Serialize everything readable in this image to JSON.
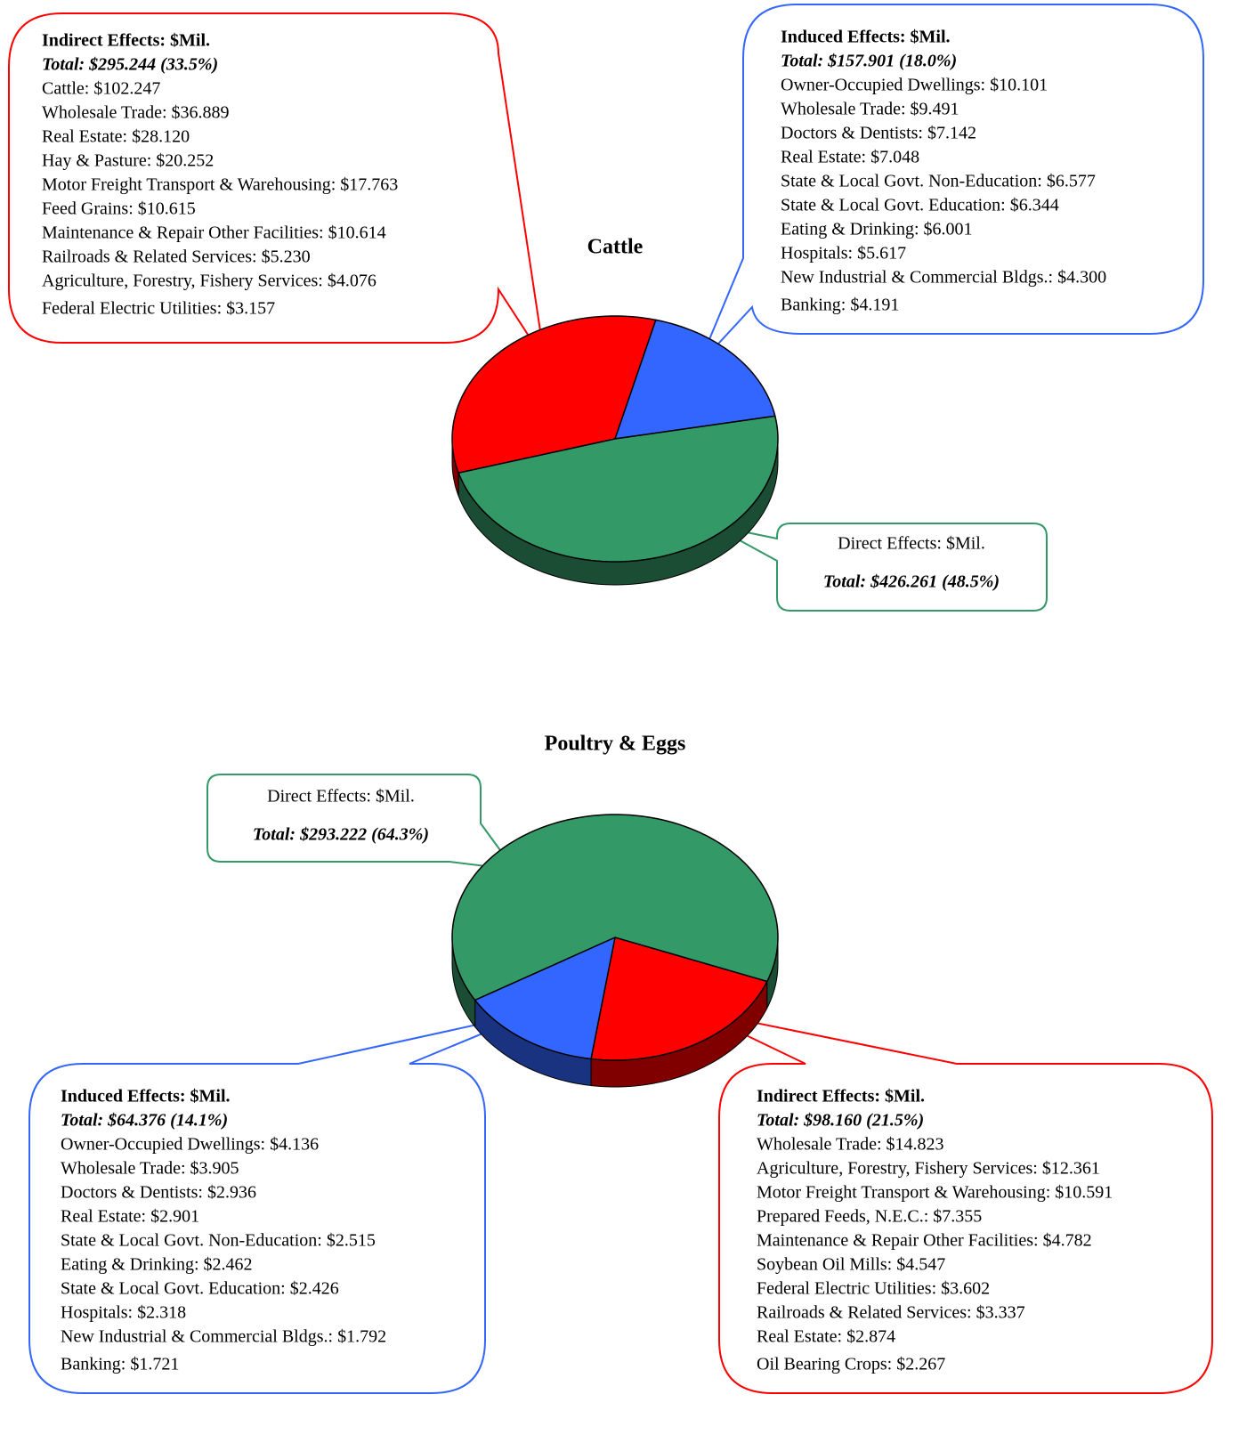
{
  "chart_data": [
    {
      "type": "pie",
      "title": "Cattle",
      "categories": [
        "Indirect Effects: $Mil.",
        "Induced Effects: $Mil.",
        "Direct Effects: $Mil."
      ],
      "values": [
        33.5,
        18.0,
        48.5
      ],
      "value_labels": [
        "Total: $295.244 (33.5%)",
        "Total: $157.901 (18.0%)",
        "Total: $426.261 (48.5%)"
      ],
      "colors": [
        "#ff0000",
        "#3366ff",
        "#339966"
      ],
      "details": [
        [
          "Cattle: $102.247",
          "Wholesale Trade: $36.889",
          "Real Estate: $28.120",
          "Hay & Pasture: $20.252",
          "Motor Freight Transport & Warehousing: $17.763",
          "Feed Grains: $10.615",
          "Maintenance & Repair Other Facilities: $10.614",
          "Railroads & Related Services: $5.230",
          "Agriculture, Forestry, Fishery Services: $4.076",
          "Federal Electric Utilities: $3.157"
        ],
        [
          "Owner-Occupied Dwellings: $10.101",
          "Wholesale Trade: $9.491",
          "Doctors & Dentists: $7.142",
          "Real Estate: $7.048",
          "State & Local Govt. Non-Education: $6.577",
          "State & Local Govt. Education: $6.344",
          "Eating & Drinking: $6.001",
          "Hospitals: $5.617",
          "New Industrial & Commercial Bldgs.: $4.300",
          "Banking: $4.191"
        ],
        []
      ]
    },
    {
      "type": "pie",
      "title": "Poultry & Eggs",
      "categories": [
        "Indirect Effects: $Mil.",
        "Induced Effects: $Mil.",
        "Direct Effects: $Mil."
      ],
      "values": [
        21.5,
        14.1,
        64.3
      ],
      "value_labels": [
        "Total: $98.160 (21.5%)",
        "Total: $64.376 (14.1%)",
        "Total: $293.222 (64.3%)"
      ],
      "colors": [
        "#ff0000",
        "#3366ff",
        "#339966"
      ],
      "details": [
        [
          "Wholesale Trade: $14.823",
          "Agriculture, Forestry, Fishery Services: $12.361",
          "Motor Freight Transport & Warehousing: $10.591",
          "Prepared Feeds, N.E.C.: $7.355",
          "Maintenance & Repair Other Facilities: $4.782",
          "Soybean Oil Mills: $4.547",
          "Federal Electric Utilities: $3.602",
          "Railroads & Related Services: $3.337",
          "Real Estate: $2.874",
          "Oil Bearing Crops: $2.267"
        ],
        [
          "Owner-Occupied Dwellings: $4.136",
          "Wholesale Trade: $3.905",
          "Doctors & Dentists: $2.936",
          "Real Estate: $2.901",
          "State & Local Govt. Non-Education: $2.515",
          "Eating & Drinking: $2.462",
          "State & Local Govt. Education: $2.426",
          "Hospitals: $2.318",
          "New Industrial & Commercial Bldgs.: $1.792",
          "Banking: $1.721"
        ],
        []
      ]
    }
  ]
}
